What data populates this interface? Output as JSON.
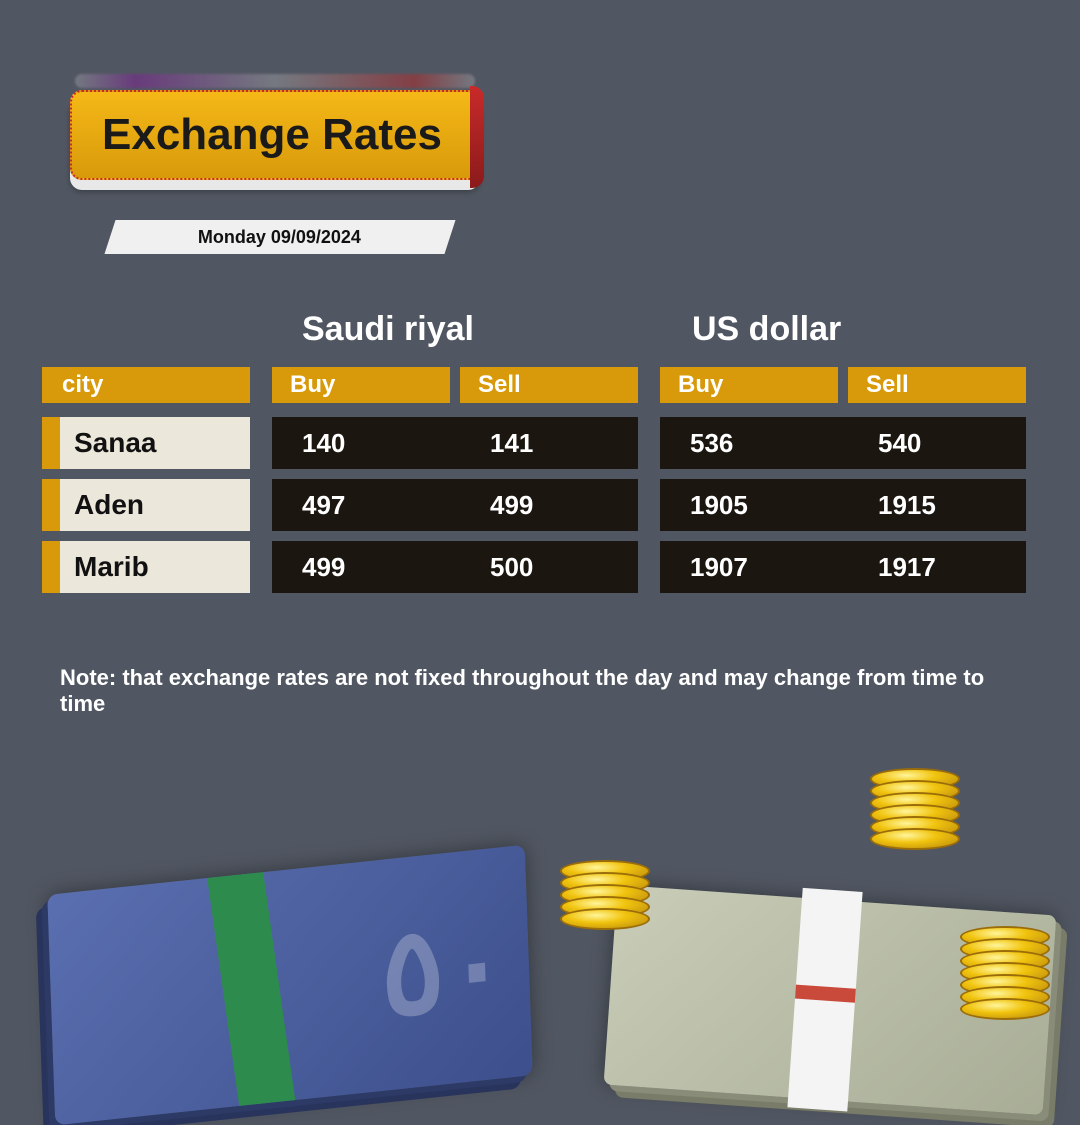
{
  "title": "Exchange Rates",
  "date": "Monday 09/09/2024",
  "colors": {
    "background": "#515762",
    "accent": "#d89a0a",
    "city_cell_bg": "#ece7db",
    "data_bg": "#1b1610",
    "text_light": "#ffffff",
    "text_dark": "#111111"
  },
  "currencies": {
    "sar": {
      "label": "Saudi riyal"
    },
    "usd": {
      "label": "US dollar"
    }
  },
  "headers": {
    "city": "city",
    "buy": "Buy",
    "sell": "Sell"
  },
  "rows": [
    {
      "city": "Sanaa",
      "sar_buy": "140",
      "sar_sell": "141",
      "usd_buy": "536",
      "usd_sell": "540"
    },
    {
      "city": "Aden",
      "sar_buy": "497",
      "sar_sell": "499",
      "usd_buy": "1905",
      "usd_sell": "1915"
    },
    {
      "city": "Marib",
      "sar_buy": "499",
      "sar_sell": "500",
      "usd_buy": "1907",
      "usd_sell": "1917"
    }
  ],
  "note": "Note: that exchange rates are not fixed throughout the day and may change from time to time",
  "decorative": {
    "riyal_denom": "٥٠"
  }
}
